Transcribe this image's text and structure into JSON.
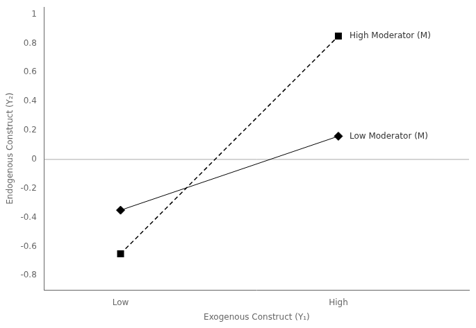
{
  "chart_data": {
    "type": "line",
    "xlabel": "Exogenous Construct (Y₁)",
    "ylabel": "Endogenous Construct (Y₂)",
    "categories": [
      "Low",
      "High"
    ],
    "series": [
      {
        "name": "Low Moderator (M)",
        "values": [
          -0.35,
          0.16
        ],
        "color": "#000000",
        "marker": "diamond",
        "line_style": "solid"
      },
      {
        "name": "High Moderator (M)",
        "values": [
          -0.65,
          0.85
        ],
        "color": "#000000",
        "marker": "square",
        "line_style": "dashed"
      }
    ],
    "ylim": [
      -0.9,
      1.05
    ],
    "yticks": [
      -0.8,
      -0.6,
      -0.4,
      -0.2,
      0,
      0.2,
      0.4,
      0.6,
      0.8,
      1
    ],
    "lines": [
      {
        "y": 0,
        "color": "#aaaaaa"
      }
    ],
    "grid": false
  }
}
